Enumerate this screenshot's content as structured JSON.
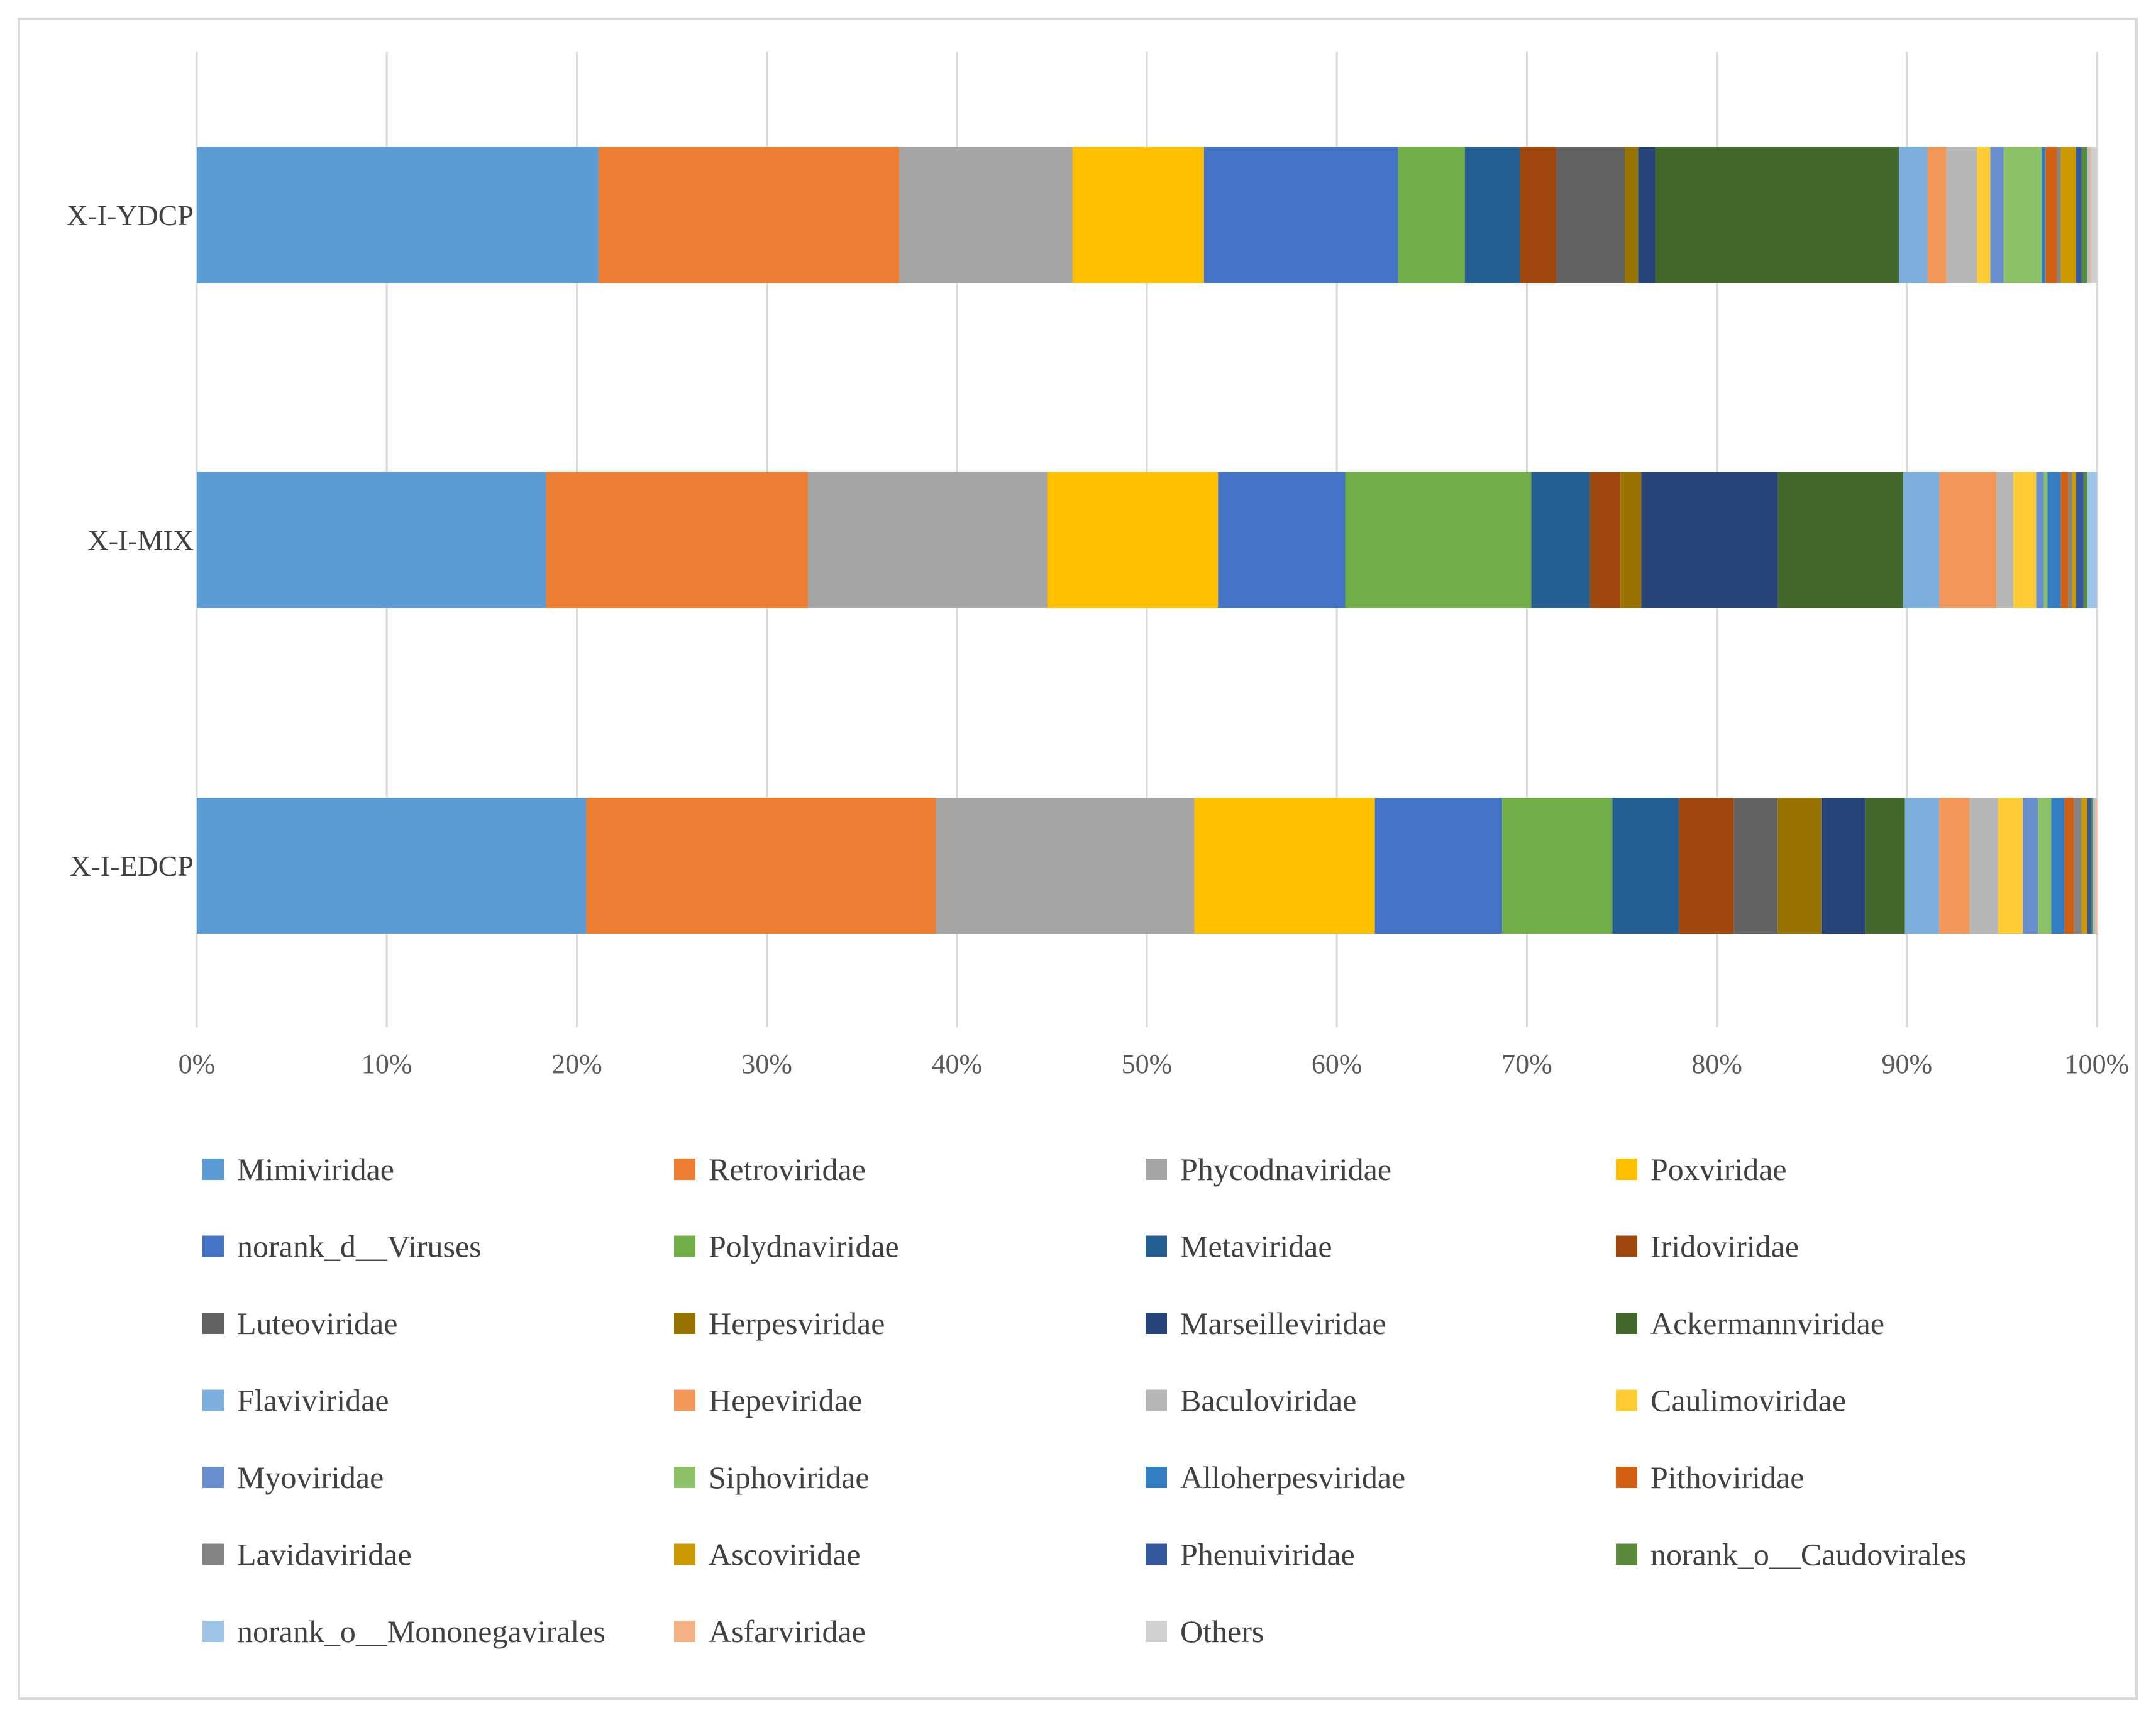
{
  "chart_data": {
    "type": "bar",
    "orientation": "horizontal",
    "stacked": true,
    "percent_stacked": true,
    "title": "",
    "xlabel": "",
    "ylabel": "",
    "xlim": [
      0,
      100
    ],
    "x_ticks": [
      "0%",
      "10%",
      "20%",
      "30%",
      "40%",
      "50%",
      "60%",
      "70%",
      "80%",
      "90%",
      "100%"
    ],
    "categories": [
      "X-I-EDCP",
      "X-I-MIX",
      "X-I-YDCP"
    ],
    "legend_position": "bottom",
    "grid": true,
    "series": [
      {
        "name": "Mimiviridae",
        "color": "#5b9bd5",
        "values": [
          20.5,
          18.4,
          21.1
        ]
      },
      {
        "name": "Retroviridae",
        "color": "#ed7d31",
        "values": [
          18.4,
          13.8,
          15.8
        ]
      },
      {
        "name": "Phycodnaviridae",
        "color": "#a5a5a5",
        "values": [
          13.6,
          12.6,
          9.1
        ]
      },
      {
        "name": "Poxviridae",
        "color": "#ffc000",
        "values": [
          9.5,
          9.0,
          6.9
        ]
      },
      {
        "name": "norank_d__Viruses",
        "color": "#4472c4",
        "values": [
          6.7,
          6.7,
          10.2
        ]
      },
      {
        "name": "Polydnaviridae",
        "color": "#70ad47",
        "values": [
          5.8,
          9.8,
          3.5
        ]
      },
      {
        "name": "Metaviridae",
        "color": "#255e91",
        "values": [
          3.5,
          3.1,
          2.9
        ]
      },
      {
        "name": "Iridoviridae",
        "color": "#9e480e",
        "values": [
          2.9,
          1.6,
          1.9
        ]
      },
      {
        "name": "Luteoviridae",
        "color": "#636363",
        "values": [
          2.3,
          0.0,
          3.6
        ]
      },
      {
        "name": "Herpesviridae",
        "color": "#997300",
        "values": [
          2.3,
          1.1,
          0.7
        ]
      },
      {
        "name": "Marseilleviridae",
        "color": "#264478",
        "values": [
          2.3,
          7.2,
          0.9
        ]
      },
      {
        "name": "Ackermannviridae",
        "color": "#43682b",
        "values": [
          2.1,
          6.6,
          12.8
        ]
      },
      {
        "name": "Flaviviridae",
        "color": "#7cafdd",
        "values": [
          1.8,
          1.9,
          1.5
        ]
      },
      {
        "name": "Hepeviridae",
        "color": "#f1975a",
        "values": [
          1.6,
          3.0,
          1.0
        ]
      },
      {
        "name": "Baculoviridae",
        "color": "#b7b7b7",
        "values": [
          1.5,
          0.9,
          1.6
        ]
      },
      {
        "name": "Caulimoviridae",
        "color": "#ffcd33",
        "values": [
          1.3,
          1.2,
          0.7
        ]
      },
      {
        "name": "Myoviridae",
        "color": "#698ed0",
        "values": [
          0.8,
          0.4,
          0.7
        ]
      },
      {
        "name": "Siphoviridae",
        "color": "#8cc168",
        "values": [
          0.7,
          0.2,
          2.0
        ]
      },
      {
        "name": "Alloherpesviridae",
        "color": "#327dc2",
        "values": [
          0.7,
          0.7,
          0.2
        ]
      },
      {
        "name": "Pithoviridae",
        "color": "#d26012",
        "values": [
          0.5,
          0.4,
          0.6
        ]
      },
      {
        "name": "Lavidaviridae",
        "color": "#848484",
        "values": [
          0.4,
          0.2,
          0.2
        ]
      },
      {
        "name": "Ascoviridae",
        "color": "#cc9a00",
        "values": [
          0.3,
          0.2,
          0.8
        ]
      },
      {
        "name": "Phenuiviridae",
        "color": "#335aa1",
        "values": [
          0.2,
          0.4,
          0.3
        ]
      },
      {
        "name": "norank_o__Caudovirales",
        "color": "#5a8a39",
        "values": [
          0.1,
          0.2,
          0.3
        ]
      },
      {
        "name": "norank_o__Mononegavirales",
        "color": "#9dc3e6",
        "values": [
          0.1,
          0.5,
          0.1
        ]
      },
      {
        "name": "Asfarviridae",
        "color": "#f4b183",
        "values": [
          0.1,
          0.0,
          0.1
        ]
      },
      {
        "name": "Others",
        "color": "#d0d0d0",
        "values": [
          0.0,
          0.0,
          0.3
        ]
      }
    ]
  }
}
